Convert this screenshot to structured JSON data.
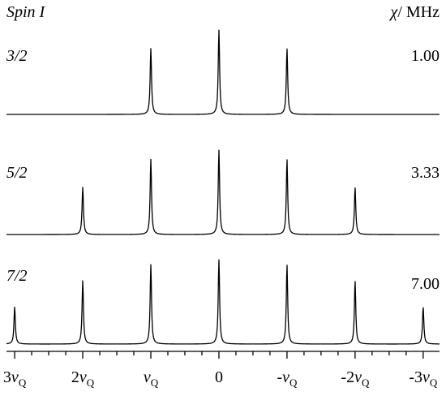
{
  "chart_data": {
    "type": "line",
    "header": {
      "left": "Spin I",
      "right_symbol": "χ",
      "right_unit": "/ MHz"
    },
    "x": {
      "ticks": [
        {
          "value": 3,
          "coef": "3",
          "sym": "ν",
          "sub": "Q"
        },
        {
          "value": 2,
          "coef": "2",
          "sym": "ν",
          "sub": "Q"
        },
        {
          "value": 1,
          "coef": "",
          "sym": "ν",
          "sub": "Q"
        },
        {
          "value": 0,
          "coef": "0",
          "sym": "",
          "sub": ""
        },
        {
          "value": -1,
          "coef": "-",
          "sym": "ν",
          "sub": "Q"
        },
        {
          "value": -2,
          "coef": "-2",
          "sym": "ν",
          "sub": "Q"
        },
        {
          "value": -3,
          "coef": "-3",
          "sym": "ν",
          "sub": "Q"
        }
      ],
      "xlim": [
        3.12,
        -3.24
      ],
      "reversed": true
    },
    "series": [
      {
        "name": "3/2",
        "chi": "1.00",
        "peaks": [
          {
            "x": 1,
            "y": 0.78
          },
          {
            "x": 0,
            "y": 1.0
          },
          {
            "x": -1,
            "y": 0.78
          }
        ]
      },
      {
        "name": "5/2",
        "chi": "3.33",
        "peaks": [
          {
            "x": 2,
            "y": 0.56
          },
          {
            "x": 1,
            "y": 0.89
          },
          {
            "x": 0,
            "y": 1.0
          },
          {
            "x": -1,
            "y": 0.89
          },
          {
            "x": -2,
            "y": 0.56
          }
        ]
      },
      {
        "name": "7/2",
        "chi": "7.00",
        "peaks": [
          {
            "x": 3,
            "y": 0.44
          },
          {
            "x": 2,
            "y": 0.75
          },
          {
            "x": 1,
            "y": 0.94
          },
          {
            "x": 0,
            "y": 1.0
          },
          {
            "x": -1,
            "y": 0.94
          },
          {
            "x": -2,
            "y": 0.75
          },
          {
            "x": -3,
            "y": 0.44
          }
        ]
      }
    ]
  }
}
